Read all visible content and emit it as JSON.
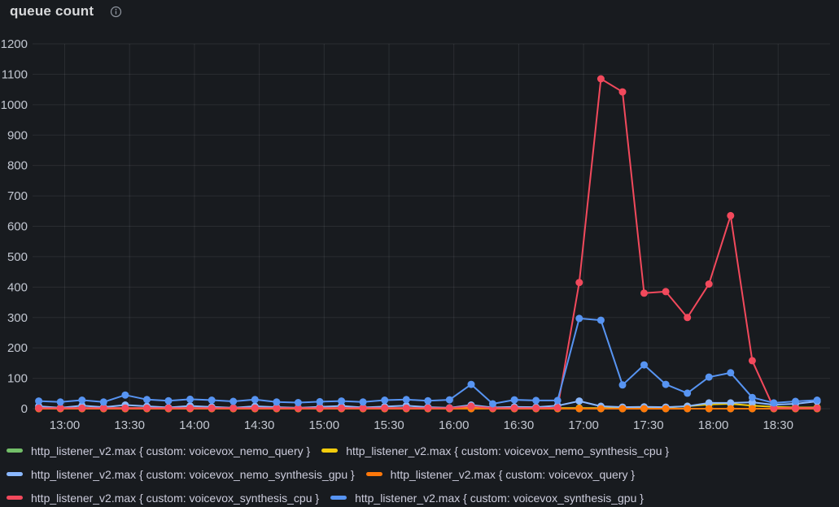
{
  "panel": {
    "title": "queue count",
    "info_icon": "info-circle-icon"
  },
  "colors": {
    "background": "#181b1f",
    "grid": "rgba(204,204,220,0.10)",
    "axis_text": "#c2c7d1",
    "legend_text": "#ccccdc",
    "title_text": "#d9dadc",
    "icon": "#9096a0"
  },
  "chart_data": {
    "type": "line",
    "title": "queue count",
    "legend_position": "bottom",
    "grid": true,
    "x": {
      "unit": "time",
      "start_min": 768,
      "step_min": 10,
      "count": 37,
      "domain_min": [
        764,
        1134
      ],
      "tick_minutes": [
        780,
        810,
        840,
        870,
        900,
        930,
        960,
        990,
        1020,
        1050,
        1080,
        1110
      ],
      "tick_labels": [
        "13:00",
        "13:30",
        "14:00",
        "14:30",
        "15:00",
        "15:30",
        "16:00",
        "16:30",
        "17:00",
        "17:30",
        "18:00",
        "18:30"
      ]
    },
    "y": {
      "min": 0,
      "max": 1200,
      "tick_step": 100,
      "tick_labels": [
        "0",
        "100",
        "200",
        "300",
        "400",
        "500",
        "600",
        "700",
        "800",
        "900",
        "1000",
        "1100",
        "1200"
      ]
    },
    "series": [
      {
        "key": "voicevox-nemo-query",
        "name": "http_listener_v2.max { custom: voicevox_nemo_query }",
        "color": "#73BF69",
        "values": [
          0,
          0,
          0,
          0,
          0,
          0,
          0,
          0,
          0,
          0,
          0,
          0,
          0,
          0,
          0,
          0,
          0,
          0,
          0,
          0,
          0,
          0,
          0,
          0,
          0,
          0,
          0,
          0,
          0,
          0,
          0,
          0,
          0,
          0,
          0,
          0,
          0
        ]
      },
      {
        "key": "voicevox-nemo-synthesis-cpu",
        "name": "http_listener_v2.max { custom: voicevox_nemo_synthesis_cpu }",
        "color": "#F2CC0C",
        "values": [
          2,
          2,
          2,
          2,
          2,
          2,
          2,
          2,
          2,
          2,
          2,
          2,
          2,
          2,
          2,
          2,
          2,
          2,
          2,
          2,
          2,
          2,
          2,
          2,
          2,
          2,
          2,
          2,
          2,
          4,
          8,
          14,
          16,
          10,
          6,
          4,
          4
        ]
      },
      {
        "key": "voicevox-nemo-synthesis-gpu",
        "name": "http_listener_v2.max { custom: voicevox_nemo_synthesis_gpu }",
        "color": "#8AB8FF",
        "values": [
          8,
          3,
          10,
          5,
          12,
          8,
          4,
          9,
          6,
          3,
          8,
          5,
          3,
          6,
          9,
          4,
          7,
          10,
          5,
          3,
          12,
          4,
          6,
          5,
          10,
          25,
          8,
          5,
          6,
          5,
          8,
          19,
          19,
          21,
          13,
          16,
          24
        ]
      },
      {
        "key": "voicevox-query",
        "name": "http_listener_v2.max { custom: voicevox_query }",
        "color": "#FF780A",
        "values": [
          0,
          0,
          0,
          0,
          0,
          0,
          0,
          0,
          0,
          0,
          0,
          0,
          0,
          0,
          0,
          0,
          0,
          0,
          0,
          0,
          0,
          0,
          0,
          0,
          0,
          0,
          0,
          0,
          0,
          0,
          0,
          0,
          0,
          0,
          0,
          0,
          0
        ]
      },
      {
        "key": "voicevox-synthesis-cpu",
        "name": "http_listener_v2.max { custom: voicevox_synthesis_cpu }",
        "color": "#F2495C",
        "values": [
          2,
          2,
          2,
          2,
          2,
          2,
          2,
          2,
          2,
          2,
          2,
          2,
          2,
          2,
          2,
          2,
          2,
          2,
          2,
          2,
          8,
          2,
          2,
          2,
          3,
          415,
          1085,
          1042,
          380,
          385,
          300,
          410,
          635,
          158,
          2,
          2,
          2
        ]
      },
      {
        "key": "voicevox-synthesis-gpu",
        "name": "http_listener_v2.max { custom: voicevox_synthesis_gpu }",
        "color": "#5794F2",
        "values": [
          25,
          22,
          28,
          22,
          45,
          30,
          26,
          31,
          28,
          24,
          30,
          22,
          20,
          23,
          25,
          22,
          28,
          30,
          26,
          29,
          80,
          16,
          29,
          27,
          27,
          297,
          291,
          78,
          144,
          80,
          51,
          104,
          118,
          37,
          19,
          24,
          28
        ]
      }
    ]
  }
}
